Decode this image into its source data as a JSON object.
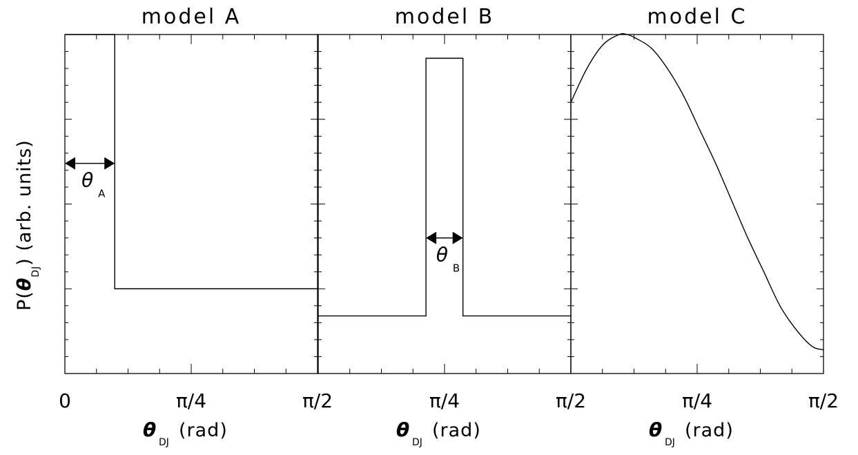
{
  "ylabel": "P(θ_DJ) (arb. units)",
  "ylabel_parts": {
    "pre": "P(",
    "theta": "θ",
    "sub": "DJ",
    "post": ") (arb. units)"
  },
  "colors": {
    "line": "#000000",
    "background": "#ffffff"
  },
  "panels": [
    {
      "title": "model A",
      "xtick_labels": [
        "0",
        "π/4",
        "π/2"
      ],
      "xlabel": {
        "theta": "θ",
        "sub": "DJ",
        "unit": "(rad)"
      },
      "annotation": {
        "theta": "θ",
        "sub": "A"
      }
    },
    {
      "title": "model B",
      "xtick_labels": [
        "",
        "π/4",
        "π/2"
      ],
      "xlabel": {
        "theta": "θ",
        "sub": "DJ",
        "unit": "(rad)"
      },
      "annotation": {
        "theta": "θ",
        "sub": "B"
      }
    },
    {
      "title": "model C",
      "xtick_labels": [
        "",
        "π/4",
        "π/2"
      ],
      "xlabel": {
        "theta": "θ",
        "sub": "DJ",
        "unit": "(rad)"
      },
      "annotation": null
    }
  ],
  "chart_data": [
    {
      "type": "line",
      "title": "model A",
      "xlabel": "θ_DJ (rad)",
      "ylabel": "P(θ_DJ) (arb. units)",
      "xlim": [
        0,
        1.5708
      ],
      "ylim": [
        0,
        1
      ],
      "x": [
        0,
        0.31,
        0.31,
        1.5708
      ],
      "y": [
        1,
        1,
        0.25,
        0.25
      ],
      "width_marker": {
        "label": "θ_A",
        "x_start": 0,
        "x_end": 0.31,
        "y": 0.62
      }
    },
    {
      "type": "line",
      "title": "model B",
      "xlabel": "θ_DJ (rad)",
      "xlim": [
        0,
        1.5708
      ],
      "ylim": [
        0,
        1
      ],
      "x": [
        0,
        0.67,
        0.67,
        0.9,
        0.9,
        1.5708
      ],
      "y": [
        0.17,
        0.17,
        0.93,
        0.93,
        0.17,
        0.17
      ],
      "width_marker": {
        "label": "θ_B",
        "x_start": 0.67,
        "x_end": 0.9,
        "y": 0.4
      }
    },
    {
      "type": "line",
      "title": "model C",
      "xlabel": "θ_DJ (rad)",
      "xlim": [
        0,
        1.5708
      ],
      "ylim": [
        0,
        1
      ],
      "x": [
        0,
        0.1,
        0.2,
        0.3,
        0.35,
        0.4,
        0.5,
        0.6,
        0.7,
        0.8,
        0.9,
        1.0,
        1.1,
        1.2,
        1.3,
        1.4,
        1.5,
        1.5708
      ],
      "y": [
        0.8,
        0.9,
        0.97,
        1.0,
        1.0,
        0.99,
        0.96,
        0.9,
        0.82,
        0.72,
        0.62,
        0.51,
        0.4,
        0.3,
        0.2,
        0.13,
        0.08,
        0.07
      ]
    }
  ]
}
